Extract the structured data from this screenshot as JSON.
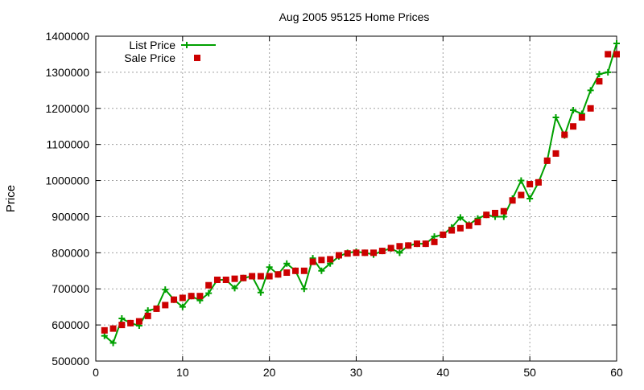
{
  "chart_data": {
    "type": "line",
    "title": "Aug 2005 95125 Home Prices",
    "xlabel": "",
    "ylabel": "Price",
    "xlim": [
      0,
      60
    ],
    "ylim": [
      500000,
      1400000
    ],
    "x_ticks": [
      "0",
      "10",
      "20",
      "30",
      "40",
      "50",
      "60"
    ],
    "y_ticks": [
      "500000",
      "600000",
      "700000",
      "800000",
      "900000",
      "1000000",
      "1100000",
      "1200000",
      "1300000",
      "1400000"
    ],
    "grid": true,
    "legend_position": "top-left",
    "x": [
      1,
      2,
      3,
      4,
      5,
      6,
      7,
      8,
      9,
      10,
      11,
      12,
      13,
      14,
      15,
      16,
      17,
      18,
      19,
      20,
      21,
      22,
      23,
      24,
      25,
      26,
      27,
      28,
      29,
      30,
      31,
      32,
      33,
      34,
      35,
      36,
      37,
      38,
      39,
      40,
      41,
      42,
      43,
      44,
      45,
      46,
      47,
      48,
      49,
      50,
      51,
      52,
      53,
      54,
      55,
      56,
      57,
      58,
      59,
      60
    ],
    "series": [
      {
        "name": "List Price",
        "color": "#00a000",
        "style": "line-plus",
        "values": [
          570000,
          550000,
          618000,
          605000,
          598000,
          640000,
          645000,
          698000,
          670000,
          650000,
          680000,
          668000,
          688000,
          725000,
          725000,
          702000,
          730000,
          735000,
          690000,
          760000,
          740000,
          770000,
          750000,
          700000,
          785000,
          750000,
          770000,
          790000,
          800000,
          803000,
          800000,
          795000,
          805000,
          812000,
          800000,
          820000,
          825000,
          825000,
          845000,
          850000,
          870000,
          898000,
          878000,
          895000,
          905000,
          900000,
          900000,
          950000,
          1000000,
          950000,
          995000,
          1055000,
          1175000,
          1125000,
          1195000,
          1185000,
          1250000,
          1295000,
          1300000,
          1380000
        ]
      },
      {
        "name": "Sale Price",
        "color": "#cc0000",
        "style": "square",
        "values": [
          585000,
          590000,
          600000,
          605000,
          610000,
          625000,
          645000,
          655000,
          670000,
          675000,
          680000,
          680000,
          710000,
          725000,
          725000,
          728000,
          730000,
          735000,
          735000,
          735000,
          740000,
          745000,
          750000,
          750000,
          775000,
          780000,
          782000,
          793000,
          798000,
          800000,
          800000,
          800000,
          805000,
          813000,
          818000,
          820000,
          825000,
          825000,
          830000,
          850000,
          862000,
          868000,
          875000,
          885000,
          905000,
          910000,
          915000,
          945000,
          960000,
          990000,
          995000,
          1055000,
          1075000,
          1127000,
          1150000,
          1175000,
          1200000,
          1275000,
          1350000,
          1350000
        ]
      }
    ]
  }
}
